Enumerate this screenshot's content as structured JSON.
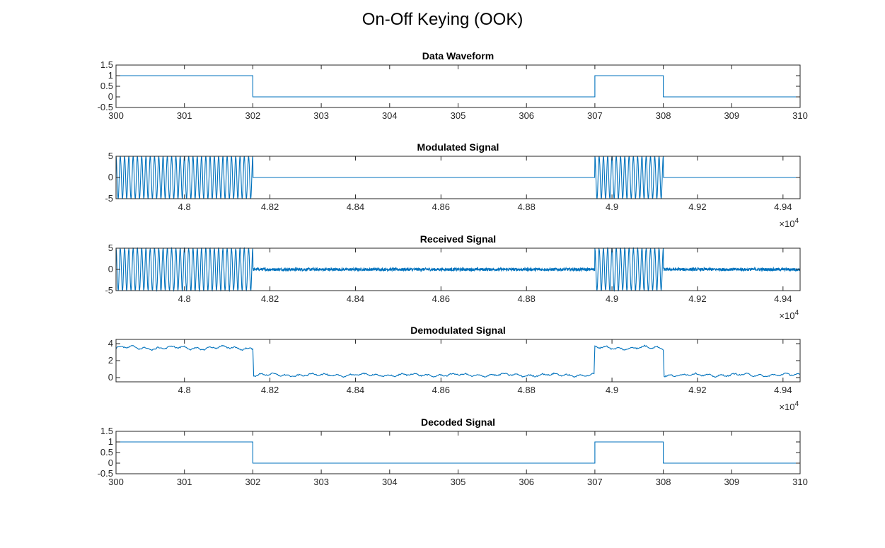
{
  "figure": {
    "title": "On-Off Keying (OOK)",
    "line_color": "#0072BD"
  },
  "chart_data": [
    {
      "type": "line",
      "title": "Data Waveform",
      "xlabel": "",
      "ylabel": "",
      "xlim": [
        300,
        310
      ],
      "ylim": [
        -0.5,
        1.5
      ],
      "xticks": [
        300,
        301,
        302,
        303,
        304,
        305,
        306,
        307,
        308,
        309,
        310
      ],
      "xtick_labels": [
        "300",
        "301",
        "302",
        "303",
        "304",
        "305",
        "306",
        "307",
        "308",
        "309",
        "310"
      ],
      "yticks": [
        -0.5,
        0,
        0.5,
        1,
        1.5
      ],
      "ytick_labels": [
        "-0.5",
        "0",
        "0.5",
        "1",
        "1.5"
      ],
      "grid": false,
      "series": [
        {
          "style": "step",
          "x": [
            300,
            302,
            302,
            307,
            307,
            308,
            308,
            310
          ],
          "y": [
            1,
            1,
            0,
            0,
            1,
            1,
            0,
            0
          ]
        }
      ]
    },
    {
      "type": "line",
      "title": "Modulated Signal",
      "xlabel": "",
      "ylabel": "",
      "xlim": [
        47840,
        49440
      ],
      "ylim": [
        -5,
        5
      ],
      "xticks": [
        48000,
        48200,
        48400,
        48600,
        48800,
        49000,
        49200,
        49400
      ],
      "xtick_labels": [
        "4.8",
        "4.82",
        "4.84",
        "4.86",
        "4.88",
        "4.9",
        "4.92",
        "4.94"
      ],
      "x_exponent_label": "×10^4",
      "yticks": [
        -5,
        0,
        5
      ],
      "ytick_labels": [
        "-5",
        "0",
        "5"
      ],
      "grid": false,
      "series": [
        {
          "style": "ook_carrier",
          "amplitude": 5,
          "carrier_cycles_per_bit": 16,
          "on_intervals": [
            [
              47840,
              48160
            ],
            [
              48960,
              49120
            ]
          ]
        }
      ]
    },
    {
      "type": "line",
      "title": "Received Signal",
      "xlabel": "",
      "ylabel": "",
      "xlim": [
        47840,
        49440
      ],
      "ylim": [
        -5,
        5
      ],
      "xticks": [
        48000,
        48200,
        48400,
        48600,
        48800,
        49000,
        49200,
        49400
      ],
      "xtick_labels": [
        "4.8",
        "4.82",
        "4.84",
        "4.86",
        "4.88",
        "4.9",
        "4.92",
        "4.94"
      ],
      "x_exponent_label": "×10^4",
      "yticks": [
        -5,
        0,
        5
      ],
      "ytick_labels": [
        "-5",
        "0",
        "5"
      ],
      "grid": false,
      "series": [
        {
          "style": "ook_carrier_noisy",
          "amplitude": 5,
          "carrier_cycles_per_bit": 16,
          "noise_amplitude": 0.35,
          "on_intervals": [
            [
              47840,
              48160
            ],
            [
              48960,
              49120
            ]
          ]
        }
      ]
    },
    {
      "type": "line",
      "title": "Demodulated Signal",
      "xlabel": "",
      "ylabel": "",
      "xlim": [
        47840,
        49440
      ],
      "ylim": [
        -0.5,
        4.5
      ],
      "xticks": [
        48000,
        48200,
        48400,
        48600,
        48800,
        49000,
        49200,
        49400
      ],
      "xtick_labels": [
        "4.8",
        "4.82",
        "4.84",
        "4.86",
        "4.88",
        "4.9",
        "4.92",
        "4.94"
      ],
      "x_exponent_label": "×10^4",
      "yticks": [
        0,
        2,
        4
      ],
      "ytick_labels": [
        "0",
        "2",
        "4"
      ],
      "grid": false,
      "series": [
        {
          "style": "envelope",
          "high_level": 3.5,
          "low_level": 0.3,
          "ripple": 0.25,
          "on_intervals": [
            [
              47840,
              48160
            ],
            [
              48960,
              49120
            ]
          ]
        }
      ]
    },
    {
      "type": "line",
      "title": "Decoded Signal",
      "xlabel": "",
      "ylabel": "",
      "xlim": [
        300,
        310
      ],
      "ylim": [
        -0.5,
        1.5
      ],
      "xticks": [
        300,
        301,
        302,
        303,
        304,
        305,
        306,
        307,
        308,
        309,
        310
      ],
      "xtick_labels": [
        "300",
        "301",
        "302",
        "303",
        "304",
        "305",
        "306",
        "307",
        "308",
        "309",
        "310"
      ],
      "yticks": [
        -0.5,
        0,
        0.5,
        1,
        1.5
      ],
      "ytick_labels": [
        "-0.5",
        "0",
        "0.5",
        "1",
        "1.5"
      ],
      "grid": false,
      "series": [
        {
          "style": "step",
          "x": [
            300,
            302,
            302,
            307,
            307,
            308,
            308,
            310
          ],
          "y": [
            1,
            1,
            0,
            0,
            1,
            1,
            0,
            0
          ]
        }
      ]
    }
  ]
}
